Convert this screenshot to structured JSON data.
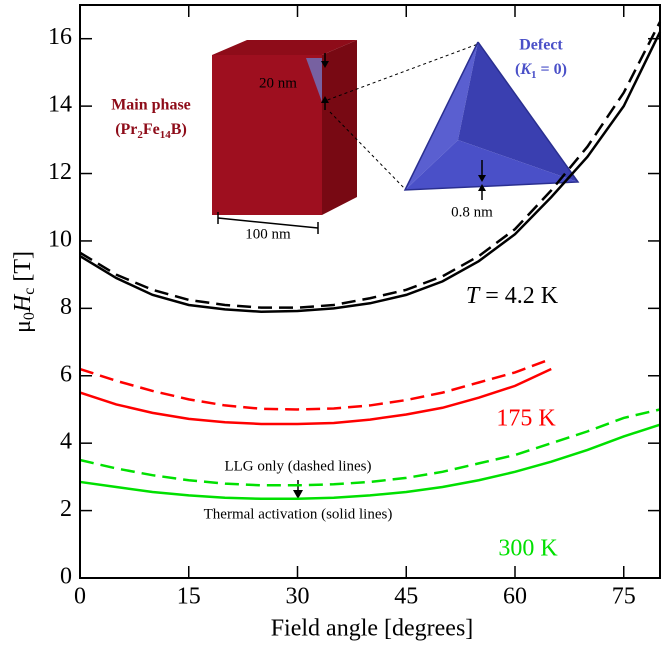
{
  "chart_data": {
    "type": "line",
    "xlabel": "Field angle [degrees]",
    "ylabel": [
      "μ",
      "0",
      "H",
      "c",
      " [T]"
    ],
    "x": [
      0,
      5,
      10,
      15,
      20,
      25,
      30,
      35,
      40,
      45,
      50,
      55,
      60,
      65,
      70,
      75,
      80
    ],
    "series": [
      {
        "color": "#000000",
        "dashed": false,
        "values": [
          9.55,
          8.9,
          8.4,
          8.1,
          7.97,
          7.9,
          7.92,
          8.0,
          8.15,
          8.4,
          8.8,
          9.4,
          10.2,
          11.3,
          12.5,
          14.0,
          16.2
        ]
      },
      {
        "color": "#000000",
        "dashed": true,
        "values": [
          9.65,
          9.0,
          8.55,
          8.25,
          8.1,
          8.02,
          8.02,
          8.1,
          8.3,
          8.55,
          8.95,
          9.55,
          10.35,
          11.5,
          12.8,
          14.4,
          16.5
        ]
      },
      {
        "color": "#ff0000",
        "dashed": false,
        "values": [
          5.5,
          5.15,
          4.9,
          4.72,
          4.62,
          4.57,
          4.57,
          4.6,
          4.7,
          4.85,
          5.05,
          5.35,
          5.7,
          6.2,
          null,
          null,
          null
        ]
      },
      {
        "color": "#ff0000",
        "dashed": true,
        "values": [
          6.2,
          5.85,
          5.55,
          5.3,
          5.12,
          5.02,
          5.0,
          5.03,
          5.12,
          5.28,
          5.5,
          5.8,
          6.1,
          6.5,
          null,
          null,
          null
        ]
      },
      {
        "color": "#00e000",
        "dashed": false,
        "values": [
          2.85,
          2.7,
          2.55,
          2.45,
          2.38,
          2.35,
          2.35,
          2.38,
          2.45,
          2.55,
          2.7,
          2.9,
          3.15,
          3.45,
          3.8,
          4.2,
          4.55
        ]
      },
      {
        "color": "#00e000",
        "dashed": true,
        "values": [
          3.5,
          3.25,
          3.05,
          2.9,
          2.8,
          2.75,
          2.75,
          2.78,
          2.85,
          2.97,
          3.15,
          3.4,
          3.65,
          4.0,
          4.35,
          4.75,
          5.0
        ]
      }
    ],
    "xlim": [
      0,
      80
    ],
    "xticks": [
      0,
      15,
      30,
      45,
      60,
      75
    ],
    "ylim": [
      0,
      17
    ],
    "yticks": [
      0,
      2,
      4,
      6,
      8,
      10,
      12,
      14,
      16
    ],
    "annotations": {
      "t_label": [
        "T",
        " = 4.2 K"
      ],
      "k175": "175 K",
      "k300": "300 K",
      "llg": "LLG only (dashed lines)",
      "thermal": "Thermal activation (solid lines)",
      "main_phase": "Main phase",
      "formula": [
        "(Pr",
        "2",
        "Fe",
        "14",
        "B)"
      ],
      "size20": "20 nm",
      "size100": "100 nm",
      "defect": "Defect",
      "defect_k": [
        "(",
        "K",
        "1",
        " = 0)"
      ],
      "size08": "0.8 nm"
    }
  }
}
